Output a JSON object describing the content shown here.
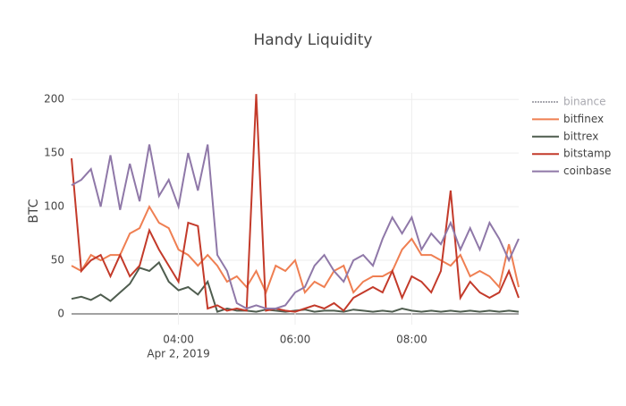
{
  "chart_data": {
    "type": "line",
    "title": "Handy Liquidity",
    "y_label": "BTC",
    "x": [
      "02:10",
      "02:20",
      "02:30",
      "02:40",
      "02:50",
      "03:00",
      "03:10",
      "03:20",
      "03:30",
      "03:40",
      "03:50",
      "04:00",
      "04:10",
      "04:20",
      "04:30",
      "04:40",
      "04:50",
      "05:00",
      "05:10",
      "05:20",
      "05:30",
      "05:40",
      "05:50",
      "06:00",
      "06:10",
      "06:20",
      "06:30",
      "06:40",
      "06:50",
      "07:00",
      "07:10",
      "07:20",
      "07:30",
      "07:40",
      "07:50",
      "08:00",
      "08:10",
      "08:20",
      "08:30",
      "08:40",
      "08:50",
      "09:00",
      "09:10",
      "09:20",
      "09:30",
      "09:40",
      "09:50"
    ],
    "xlim": [
      "02:10",
      "09:50"
    ],
    "xticks": [
      "04:00",
      "06:00",
      "08:00"
    ],
    "x_date": "Apr 2, 2019",
    "ylim": [
      -10,
      206
    ],
    "yticks": [
      0,
      50,
      100,
      150,
      200
    ],
    "grid": true,
    "series": [
      {
        "name": "binance",
        "color": "#a9a9b0",
        "dashed": true,
        "values": [
          null,
          null,
          null,
          null,
          null,
          null,
          null,
          null,
          null,
          null,
          null,
          null,
          null,
          null,
          null,
          null,
          null,
          null,
          null,
          null,
          null,
          null,
          null,
          null,
          null,
          null,
          null,
          null,
          null,
          null,
          null,
          null,
          null,
          null,
          null,
          null,
          null,
          null,
          null,
          null,
          null,
          null,
          null,
          null,
          null,
          null,
          null
        ]
      },
      {
        "name": "bitfinex",
        "color": "#ef7f52",
        "values": [
          45,
          40,
          55,
          50,
          55,
          55,
          75,
          80,
          100,
          85,
          80,
          60,
          55,
          45,
          55,
          45,
          30,
          35,
          25,
          40,
          20,
          45,
          40,
          50,
          20,
          30,
          25,
          40,
          45,
          20,
          30,
          35,
          35,
          40,
          60,
          70,
          55,
          55,
          50,
          45,
          55,
          35,
          40,
          35,
          25,
          65,
          25
        ]
      },
      {
        "name": "bittrex",
        "color": "#4f5d4f",
        "values": [
          14,
          16,
          13,
          18,
          12,
          20,
          28,
          43,
          40,
          48,
          30,
          22,
          25,
          18,
          30,
          2,
          5,
          3,
          3,
          2,
          4,
          3,
          2,
          3,
          4,
          2,
          3,
          3,
          2,
          4,
          3,
          2,
          3,
          2,
          5,
          3,
          2,
          3,
          2,
          3,
          2,
          3,
          2,
          3,
          2,
          3,
          2
        ]
      },
      {
        "name": "bitstamp",
        "color": "#c33a2a",
        "values": [
          145,
          40,
          50,
          55,
          35,
          55,
          35,
          45,
          78,
          60,
          45,
          30,
          85,
          82,
          5,
          8,
          3,
          5,
          3,
          205,
          3,
          5,
          3,
          2,
          5,
          8,
          5,
          10,
          3,
          15,
          20,
          25,
          20,
          40,
          15,
          35,
          30,
          20,
          40,
          115,
          15,
          30,
          20,
          15,
          20,
          40,
          15
        ]
      },
      {
        "name": "coinbase",
        "color": "#8f78a8",
        "values": [
          120,
          125,
          135,
          100,
          148,
          97,
          140,
          105,
          158,
          110,
          125,
          100,
          150,
          115,
          158,
          55,
          40,
          10,
          5,
          8,
          5,
          5,
          8,
          20,
          25,
          45,
          55,
          40,
          30,
          50,
          55,
          45,
          70,
          90,
          75,
          90,
          60,
          75,
          65,
          85,
          60,
          80,
          60,
          85,
          70,
          50,
          70
        ]
      }
    ]
  }
}
